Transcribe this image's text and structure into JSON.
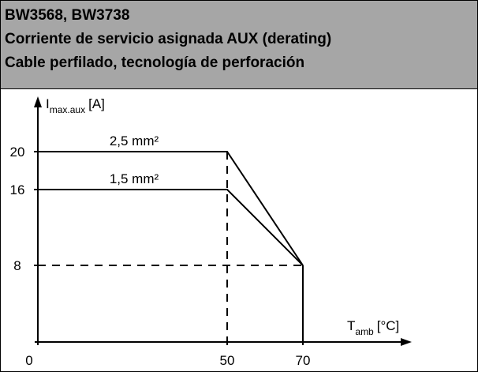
{
  "chart_data": {
    "type": "line",
    "title": [
      "BW3568, BW3738",
      "Corriente de servicio asignada AUX (derating)",
      "Cable perfilado, tecnología de perforación"
    ],
    "y_label": [
      "I",
      "max.aux",
      "[A]"
    ],
    "x_label": [
      "T",
      "amb",
      "[°C]"
    ],
    "x": [
      0,
      50,
      70
    ],
    "series": [
      {
        "name": "2,5 mm²",
        "color": "#000000",
        "values": [
          20,
          20,
          8
        ]
      },
      {
        "name": "1,5 mm²",
        "color": "#000000",
        "values": [
          16,
          16,
          8
        ]
      }
    ],
    "xlim": [
      0,
      98
    ],
    "ylim": [
      0,
      26
    ],
    "xticks": [
      0,
      50,
      70
    ],
    "yticks": [
      8,
      16,
      20
    ]
  }
}
